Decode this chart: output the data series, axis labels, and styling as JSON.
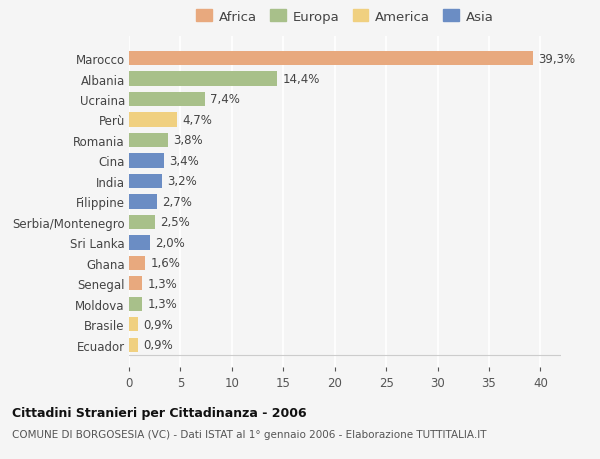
{
  "categories": [
    "Marocco",
    "Albania",
    "Ucraina",
    "Perù",
    "Romania",
    "Cina",
    "India",
    "Filippine",
    "Serbia/Montenegro",
    "Sri Lanka",
    "Ghana",
    "Senegal",
    "Moldova",
    "Brasile",
    "Ecuador"
  ],
  "values": [
    39.3,
    14.4,
    7.4,
    4.7,
    3.8,
    3.4,
    3.2,
    2.7,
    2.5,
    2.0,
    1.6,
    1.3,
    1.3,
    0.9,
    0.9
  ],
  "labels": [
    "39,3%",
    "14,4%",
    "7,4%",
    "4,7%",
    "3,8%",
    "3,4%",
    "3,2%",
    "2,7%",
    "2,5%",
    "2,0%",
    "1,6%",
    "1,3%",
    "1,3%",
    "0,9%",
    "0,9%"
  ],
  "continents": [
    "Africa",
    "Europa",
    "Europa",
    "America",
    "Europa",
    "Asia",
    "Asia",
    "Asia",
    "Europa",
    "Asia",
    "Africa",
    "Africa",
    "Europa",
    "America",
    "America"
  ],
  "colors": {
    "Africa": "#E8A97E",
    "Europa": "#A8C08A",
    "America": "#F0D080",
    "Asia": "#6B8DC4"
  },
  "legend_order": [
    "Africa",
    "Europa",
    "America",
    "Asia"
  ],
  "xlim": [
    0,
    42
  ],
  "xticks": [
    0,
    5,
    10,
    15,
    20,
    25,
    30,
    35,
    40
  ],
  "title_bold": "Cittadini Stranieri per Cittadinanza - 2006",
  "subtitle": "COMUNE DI BORGOSESIA (VC) - Dati ISTAT al 1° gennaio 2006 - Elaborazione TUTTITALIA.IT",
  "background_color": "#f5f5f5",
  "bar_height": 0.7,
  "label_fontsize": 8.5,
  "tick_fontsize": 8.5,
  "legend_fontsize": 9.5
}
